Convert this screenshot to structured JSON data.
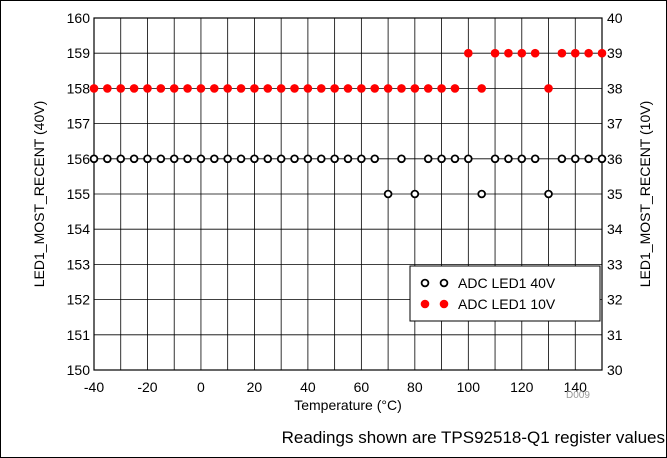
{
  "chart_data": {
    "type": "scatter",
    "xlabel": "Temperature (°C)",
    "ylabel": "LED1_MOST_RECENT (40V)",
    "y2label": "LED1_MOST_RECENT (10V)",
    "xlim": [
      -40,
      150
    ],
    "ylim": [
      150,
      160
    ],
    "y2lim": [
      30,
      40
    ],
    "x_ticks": [
      -40,
      -20,
      0,
      20,
      40,
      60,
      80,
      100,
      120,
      140
    ],
    "y_ticks": [
      150,
      151,
      152,
      153,
      154,
      155,
      156,
      157,
      158,
      159,
      160
    ],
    "y2_ticks": [
      30,
      31,
      32,
      33,
      34,
      35,
      36,
      37,
      38,
      39,
      40
    ],
    "grid": true,
    "legend_position": "bottom-right",
    "figure_code": "D009",
    "series": [
      {
        "name": "ADC LED1 40V",
        "axis": "left",
        "marker": "open-circle",
        "color": "#000000",
        "x": [
          -40,
          -35,
          -30,
          -25,
          -20,
          -15,
          -10,
          -5,
          0,
          5,
          10,
          15,
          20,
          25,
          30,
          35,
          40,
          45,
          50,
          55,
          60,
          65,
          70,
          75,
          80,
          85,
          90,
          95,
          100,
          105,
          110,
          115,
          120,
          125,
          130,
          135,
          140,
          145,
          150
        ],
        "y": [
          156,
          156,
          156,
          156,
          156,
          156,
          156,
          156,
          156,
          156,
          156,
          156,
          156,
          156,
          156,
          156,
          156,
          156,
          156,
          156,
          156,
          156,
          155,
          156,
          155,
          156,
          156,
          156,
          156,
          155,
          156,
          156,
          156,
          156,
          155,
          156,
          156,
          156,
          156
        ]
      },
      {
        "name": "ADC LED1 10V",
        "axis": "right",
        "marker": "filled-circle",
        "color": "#ff0000",
        "x": [
          -40,
          -35,
          -30,
          -25,
          -20,
          -15,
          -10,
          -5,
          0,
          5,
          10,
          15,
          20,
          25,
          30,
          35,
          40,
          45,
          50,
          55,
          60,
          65,
          70,
          75,
          80,
          85,
          90,
          95,
          100,
          105,
          110,
          115,
          120,
          125,
          130,
          135,
          140,
          145,
          150
        ],
        "y": [
          38,
          38,
          38,
          38,
          38,
          38,
          38,
          38,
          38,
          38,
          38,
          38,
          38,
          38,
          38,
          38,
          38,
          38,
          38,
          38,
          38,
          38,
          38,
          38,
          38,
          38,
          38,
          38,
          39,
          38,
          39,
          39,
          39,
          39,
          38,
          39,
          39,
          39,
          39
        ]
      }
    ]
  },
  "caption": "Readings shown are TPS92518-Q1 register values"
}
